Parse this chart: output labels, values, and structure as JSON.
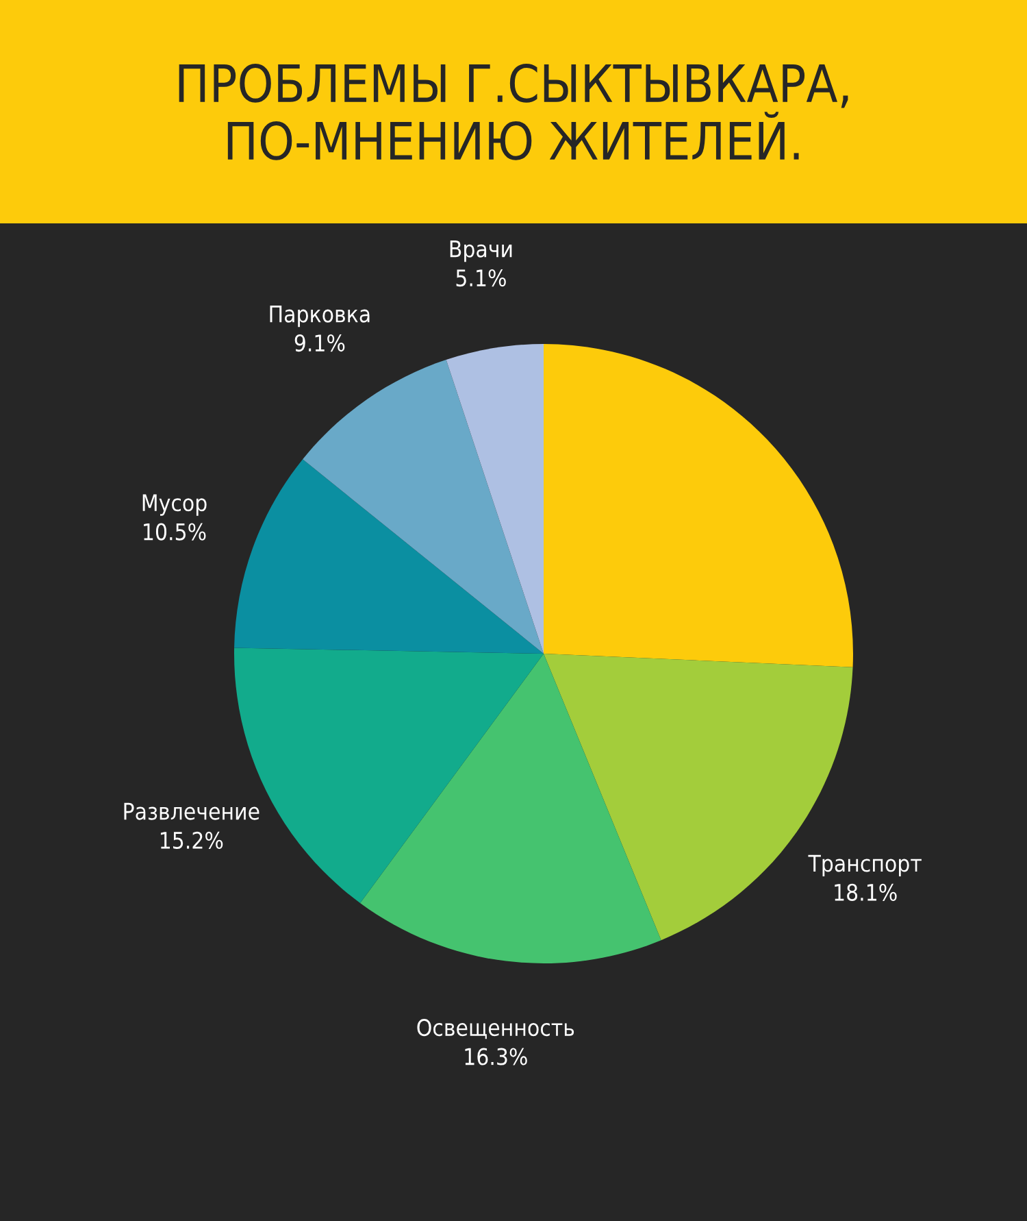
{
  "chart_data": {
    "type": "pie",
    "title": "ПРОБЛЕМЫ Г.СЫКТЫВКАРА,\nПО-МНЕНИЮ ЖИТЕЛЕЙ.",
    "categories": [
      null,
      "Транспорт",
      "Освещенность",
      "Развлечение",
      "Мусор",
      "Парковка",
      "Врачи"
    ],
    "values": [
      25.7,
      18.1,
      16.3,
      15.2,
      10.5,
      9.1,
      5.1
    ],
    "value_labels": [
      null,
      "18.1%",
      "16.3%",
      "15.2%",
      "10.5%",
      "9.1%",
      "5.1%"
    ],
    "colors": [
      "#fdcb0b",
      "#a3cd3b",
      "#45c36f",
      "#12ab8c",
      "#0b8fa1",
      "#69a9c8",
      "#aec0e3"
    ],
    "legend": false
  }
}
